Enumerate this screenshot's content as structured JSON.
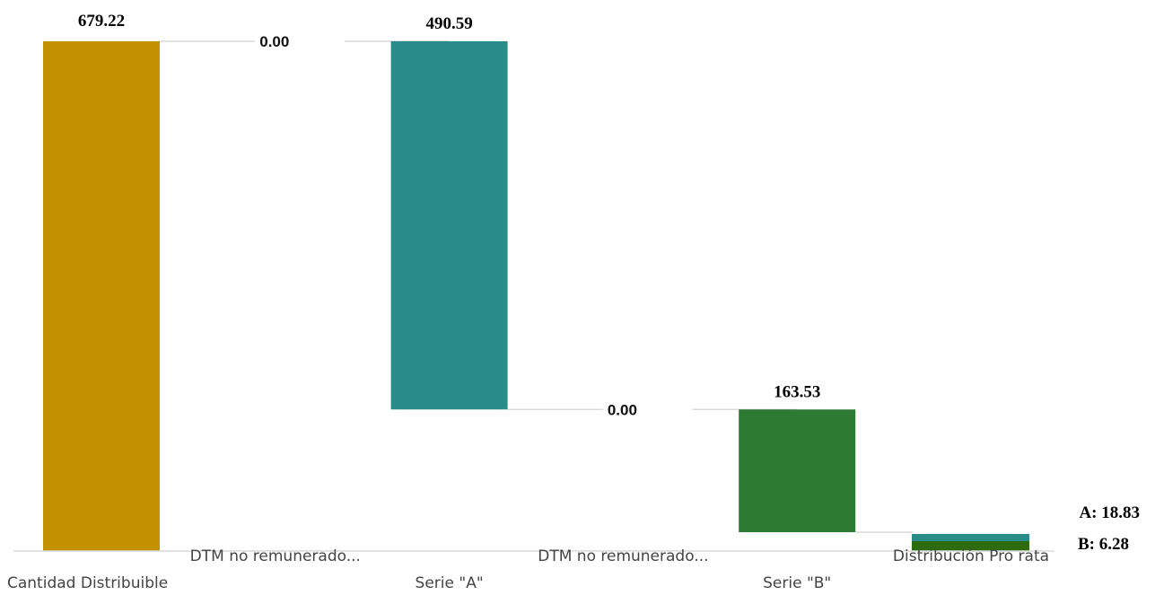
{
  "chart_data": {
    "type": "bar",
    "subtype": "waterfall",
    "title": "",
    "xlabel": "",
    "ylabel": "",
    "ylim": [
      0,
      679.22
    ],
    "grid": false,
    "categories": [
      "Cantidad Distribuible",
      "DTM no remunerado...",
      "Serie \"A\"",
      "DTM no remunerado...",
      "Serie \"B\"",
      "Distribución Pro rata"
    ],
    "bars": [
      {
        "category_index": 0,
        "start": 0,
        "end": 679.22,
        "value": 679.22,
        "label": "679.22",
        "color": "#C19100"
      },
      {
        "category_index": 1,
        "start": 679.22,
        "end": 679.22,
        "value": 0.0,
        "label": "0.00",
        "color": "#2A8C88"
      },
      {
        "category_index": 2,
        "start": 188.63,
        "end": 679.22,
        "value": 490.59,
        "label": "490.59",
        "color": "#2A8C88"
      },
      {
        "category_index": 3,
        "start": 188.63,
        "end": 188.63,
        "value": 0.0,
        "label": "0.00",
        "color": "#2D7A35"
      },
      {
        "category_index": 4,
        "start": 25.1,
        "end": 188.63,
        "value": 163.53,
        "label": "163.53",
        "color": "#2D7A35"
      }
    ],
    "pro_rata": {
      "category_index": 5,
      "segments": [
        {
          "name": "B",
          "value": 6.28,
          "label": "B: 6.28",
          "color": "#2E6B0E"
        },
        {
          "name": "A",
          "value": 18.83,
          "label": "A: 18.83",
          "color": "#2A8C88"
        }
      ]
    }
  }
}
